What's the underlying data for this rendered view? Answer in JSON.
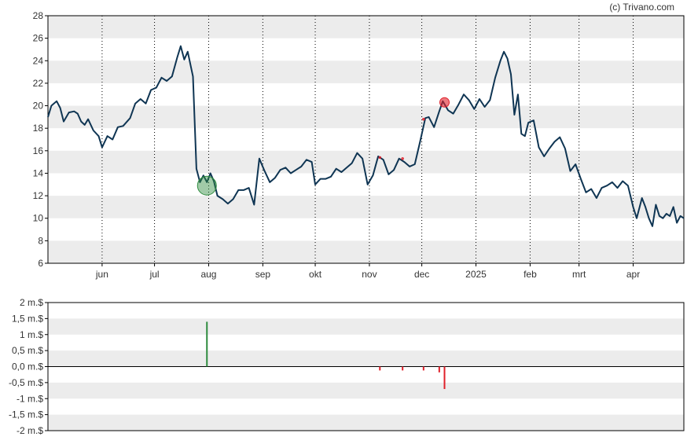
{
  "credit": "(c) Trivano.com",
  "colors": {
    "price_line": "#0f3553",
    "buy": "#2e8b3e",
    "sell": "#e0202a",
    "band": "#ececec",
    "grid": "#000000"
  },
  "chart_data": [
    {
      "type": "line",
      "title": "",
      "xlabel": "",
      "ylabel": "",
      "ylim": [
        6,
        28
      ],
      "y_ticks": [
        "6",
        "8",
        "10",
        "12",
        "14",
        "16",
        "18",
        "20",
        "22",
        "24",
        "26",
        "28"
      ],
      "x_ticks": [
        {
          "label": "jun",
          "date": "2024-06-01"
        },
        {
          "label": "jul",
          "date": "2024-07-01"
        },
        {
          "label": "aug",
          "date": "2024-08-01"
        },
        {
          "label": "sep",
          "date": "2024-09-01"
        },
        {
          "label": "okt",
          "date": "2024-10-01"
        },
        {
          "label": "nov",
          "date": "2024-11-01"
        },
        {
          "label": "dec",
          "date": "2024-12-01"
        },
        {
          "label": "2025",
          "date": "2025-01-01"
        },
        {
          "label": "feb",
          "date": "2025-02-01"
        },
        {
          "label": "mrt",
          "date": "2025-03-01"
        },
        {
          "label": "apr",
          "date": "2025-04-01"
        }
      ],
      "x_range": [
        "2024-05-01",
        "2025-04-30"
      ],
      "grid": "vertical dotted at month starts, horizontal alternating bands",
      "series": [
        {
          "points": [
            [
              "2024-05-01",
              19.0
            ],
            [
              "2024-05-03",
              20.0
            ],
            [
              "2024-05-06",
              20.4
            ],
            [
              "2024-05-08",
              19.8
            ],
            [
              "2024-05-10",
              18.6
            ],
            [
              "2024-05-13",
              19.4
            ],
            [
              "2024-05-16",
              19.5
            ],
            [
              "2024-05-18",
              19.3
            ],
            [
              "2024-05-20",
              18.6
            ],
            [
              "2024-05-22",
              18.3
            ],
            [
              "2024-05-24",
              18.8
            ],
            [
              "2024-05-27",
              17.8
            ],
            [
              "2024-05-30",
              17.3
            ],
            [
              "2024-06-01",
              16.3
            ],
            [
              "2024-06-04",
              17.3
            ],
            [
              "2024-06-07",
              17.0
            ],
            [
              "2024-06-10",
              18.1
            ],
            [
              "2024-06-13",
              18.2
            ],
            [
              "2024-06-17",
              18.9
            ],
            [
              "2024-06-20",
              20.2
            ],
            [
              "2024-06-23",
              20.6
            ],
            [
              "2024-06-26",
              20.2
            ],
            [
              "2024-06-29",
              21.4
            ],
            [
              "2024-07-02",
              21.6
            ],
            [
              "2024-07-05",
              22.5
            ],
            [
              "2024-07-08",
              22.2
            ],
            [
              "2024-07-11",
              22.6
            ],
            [
              "2024-07-14",
              24.3
            ],
            [
              "2024-07-16",
              25.3
            ],
            [
              "2024-07-18",
              24.1
            ],
            [
              "2024-07-20",
              24.8
            ],
            [
              "2024-07-23",
              22.6
            ],
            [
              "2024-07-25",
              14.4
            ],
            [
              "2024-07-27",
              13.2
            ],
            [
              "2024-07-29",
              13.8
            ],
            [
              "2024-07-31",
              13.2
            ],
            [
              "2024-08-02",
              14.0
            ],
            [
              "2024-08-04",
              13.3
            ],
            [
              "2024-08-06",
              12.0
            ],
            [
              "2024-08-09",
              11.7
            ],
            [
              "2024-08-12",
              11.3
            ],
            [
              "2024-08-15",
              11.7
            ],
            [
              "2024-08-18",
              12.5
            ],
            [
              "2024-08-21",
              12.5
            ],
            [
              "2024-08-24",
              12.7
            ],
            [
              "2024-08-27",
              11.2
            ],
            [
              "2024-08-30",
              15.3
            ],
            [
              "2024-09-02",
              14.2
            ],
            [
              "2024-09-05",
              13.2
            ],
            [
              "2024-09-08",
              13.6
            ],
            [
              "2024-09-11",
              14.3
            ],
            [
              "2024-09-14",
              14.5
            ],
            [
              "2024-09-17",
              14.0
            ],
            [
              "2024-09-20",
              14.3
            ],
            [
              "2024-09-23",
              14.6
            ],
            [
              "2024-09-26",
              15.2
            ],
            [
              "2024-09-29",
              15.0
            ],
            [
              "2024-10-01",
              13.0
            ],
            [
              "2024-10-04",
              13.5
            ],
            [
              "2024-10-07",
              13.5
            ],
            [
              "2024-10-10",
              13.7
            ],
            [
              "2024-10-13",
              14.4
            ],
            [
              "2024-10-16",
              14.1
            ],
            [
              "2024-10-19",
              14.5
            ],
            [
              "2024-10-22",
              14.9
            ],
            [
              "2024-10-25",
              15.8
            ],
            [
              "2024-10-28",
              15.3
            ],
            [
              "2024-10-31",
              13.0
            ],
            [
              "2024-11-03",
              13.8
            ],
            [
              "2024-11-06",
              15.5
            ],
            [
              "2024-11-09",
              15.2
            ],
            [
              "2024-11-12",
              13.9
            ],
            [
              "2024-11-15",
              14.3
            ],
            [
              "2024-11-18",
              15.3
            ],
            [
              "2024-11-21",
              15.0
            ],
            [
              "2024-11-24",
              14.6
            ],
            [
              "2024-11-27",
              14.8
            ],
            [
              "2024-11-30",
              16.8
            ],
            [
              "2024-12-03",
              18.9
            ],
            [
              "2024-12-05",
              19.0
            ],
            [
              "2024-12-08",
              18.1
            ],
            [
              "2024-12-11",
              19.5
            ],
            [
              "2024-12-13",
              20.4
            ],
            [
              "2024-12-16",
              19.6
            ],
            [
              "2024-12-19",
              19.3
            ],
            [
              "2024-12-22",
              20.1
            ],
            [
              "2024-12-25",
              21.0
            ],
            [
              "2024-12-28",
              20.5
            ],
            [
              "2024-12-31",
              19.7
            ],
            [
              "2025-01-03",
              20.6
            ],
            [
              "2025-01-06",
              19.9
            ],
            [
              "2025-01-09",
              20.5
            ],
            [
              "2025-01-12",
              22.5
            ],
            [
              "2025-01-15",
              24.0
            ],
            [
              "2025-01-17",
              24.8
            ],
            [
              "2025-01-19",
              24.2
            ],
            [
              "2025-01-21",
              22.8
            ],
            [
              "2025-01-23",
              19.2
            ],
            [
              "2025-01-25",
              21.0
            ],
            [
              "2025-01-27",
              17.5
            ],
            [
              "2025-01-29",
              17.3
            ],
            [
              "2025-01-31",
              18.5
            ],
            [
              "2025-02-03",
              18.7
            ],
            [
              "2025-02-06",
              16.3
            ],
            [
              "2025-02-09",
              15.5
            ],
            [
              "2025-02-12",
              16.2
            ],
            [
              "2025-02-15",
              16.8
            ],
            [
              "2025-02-18",
              17.2
            ],
            [
              "2025-02-21",
              16.2
            ],
            [
              "2025-02-24",
              14.2
            ],
            [
              "2025-02-27",
              14.8
            ],
            [
              "2025-03-02",
              13.5
            ],
            [
              "2025-03-05",
              12.3
            ],
            [
              "2025-03-08",
              12.6
            ],
            [
              "2025-03-11",
              11.8
            ],
            [
              "2025-03-14",
              12.7
            ],
            [
              "2025-03-17",
              12.9
            ],
            [
              "2025-03-20",
              13.2
            ],
            [
              "2025-03-23",
              12.7
            ],
            [
              "2025-03-26",
              13.3
            ],
            [
              "2025-03-29",
              12.9
            ],
            [
              "2025-04-01",
              11.0
            ],
            [
              "2025-04-03",
              10.0
            ],
            [
              "2025-04-06",
              11.8
            ],
            [
              "2025-04-08",
              11.0
            ],
            [
              "2025-04-10",
              10.0
            ],
            [
              "2025-04-12",
              9.3
            ],
            [
              "2025-04-14",
              11.2
            ],
            [
              "2025-04-16",
              10.2
            ],
            [
              "2025-04-18",
              10.0
            ],
            [
              "2025-04-20",
              10.4
            ],
            [
              "2025-04-22",
              10.2
            ],
            [
              "2025-04-24",
              11.0
            ],
            [
              "2025-04-26",
              9.6
            ],
            [
              "2025-04-28",
              10.2
            ],
            [
              "2025-04-30",
              10.0
            ]
          ]
        }
      ],
      "markers": [
        {
          "kind": "buy",
          "date": "2024-07-31",
          "value": 12.9,
          "size": "large"
        },
        {
          "kind": "sell",
          "date": "2024-12-14",
          "value": 20.3,
          "size": "medium"
        },
        {
          "kind": "sell",
          "date": "2024-11-07",
          "value": 15.4,
          "size": "tiny"
        },
        {
          "kind": "sell",
          "date": "2024-11-20",
          "value": 15.3,
          "size": "tiny"
        },
        {
          "kind": "sell",
          "date": "2024-12-02",
          "value": 18.8,
          "size": "tiny"
        }
      ]
    },
    {
      "type": "bar",
      "title": "",
      "xlabel": "",
      "ylabel": "",
      "ylim": [
        -2,
        2
      ],
      "y_ticks": [
        "2 m.$",
        "1,5 m.$",
        "1 m.$",
        "0,5 m.$",
        "0,0 m.$",
        "-0,5 m.$",
        "-1 m.$",
        "-1,5 m.$",
        "-2 m.$"
      ],
      "x_range": [
        "2024-05-01",
        "2025-04-30"
      ],
      "grid": "horizontal alternating bands, zero line",
      "bars": [
        {
          "date": "2024-07-31",
          "value": 1.4
        },
        {
          "date": "2024-11-07",
          "value": -0.12
        },
        {
          "date": "2024-11-20",
          "value": -0.12
        },
        {
          "date": "2024-12-02",
          "value": -0.12
        },
        {
          "date": "2024-12-11",
          "value": -0.18
        },
        {
          "date": "2024-12-14",
          "value": -0.7
        }
      ]
    }
  ]
}
